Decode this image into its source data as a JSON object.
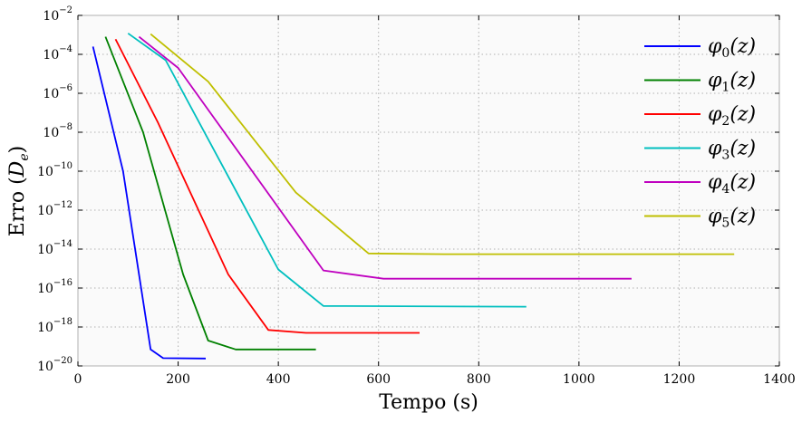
{
  "chart_data": {
    "type": "line",
    "title": "",
    "xlabel": "Tempo (s)",
    "ylabel_prefix": "Erro (",
    "ylabel_math": "D",
    "ylabel_sub": "e",
    "ylabel_suffix": ")",
    "xlim": [
      0,
      1400
    ],
    "ylim_exp": [
      -20,
      -2
    ],
    "yscale": "log",
    "grid": true,
    "legend_position": "top-right",
    "x_ticks": [
      "0",
      "200",
      "400",
      "600",
      "800",
      "1000",
      "1200",
      "1400"
    ],
    "y_tick_base": "10",
    "y_tick_exponents": [
      "−20",
      "−18",
      "−16",
      "−14",
      "−12",
      "−10",
      "−8",
      "−6",
      "−4",
      "−2"
    ],
    "series": [
      {
        "name": "φ",
        "name_sub": "0",
        "name_arg": "(z)",
        "color": "#0000ff",
        "points": [
          [
            30,
            0.00025
          ],
          [
            90,
            1e-10
          ],
          [
            145,
            7e-20
          ],
          [
            170,
            2.5e-20
          ],
          [
            255,
            2.4e-20
          ]
        ]
      },
      {
        "name": "φ",
        "name_sub": "1",
        "name_arg": "(z)",
        "color": "#008000",
        "points": [
          [
            55,
            0.0008
          ],
          [
            130,
            1e-08
          ],
          [
            210,
            5e-16
          ],
          [
            260,
            2e-19
          ],
          [
            315,
            7e-20
          ],
          [
            475,
            7e-20
          ]
        ]
      },
      {
        "name": "φ",
        "name_sub": "2",
        "name_arg": "(z)",
        "color": "#ff0000",
        "points": [
          [
            75,
            0.0006
          ],
          [
            160,
            3e-08
          ],
          [
            300,
            5e-16
          ],
          [
            380,
            7e-19
          ],
          [
            455,
            5e-19
          ],
          [
            682,
            5e-19
          ]
        ]
      },
      {
        "name": "φ",
        "name_sub": "3",
        "name_arg": "(z)",
        "color": "#00bfbf",
        "points": [
          [
            100,
            0.0012
          ],
          [
            175,
            5e-05
          ],
          [
            400,
            9e-16
          ],
          [
            490,
            1.2e-17
          ],
          [
            895,
            1.1e-17
          ]
        ]
      },
      {
        "name": "φ",
        "name_sub": "4",
        "name_arg": "(z)",
        "color": "#bf00bf",
        "points": [
          [
            122,
            0.0008
          ],
          [
            200,
            2e-05
          ],
          [
            490,
            8e-16
          ],
          [
            610,
            3e-16
          ],
          [
            1105,
            3e-16
          ]
        ]
      },
      {
        "name": "φ",
        "name_sub": "5",
        "name_arg": "(z)",
        "color": "#bfbf00",
        "points": [
          [
            145,
            0.0011
          ],
          [
            260,
            4e-06
          ],
          [
            435,
            8e-12
          ],
          [
            580,
            6e-15
          ],
          [
            730,
            5.5e-15
          ],
          [
            1310,
            5.5e-15
          ]
        ]
      }
    ]
  }
}
